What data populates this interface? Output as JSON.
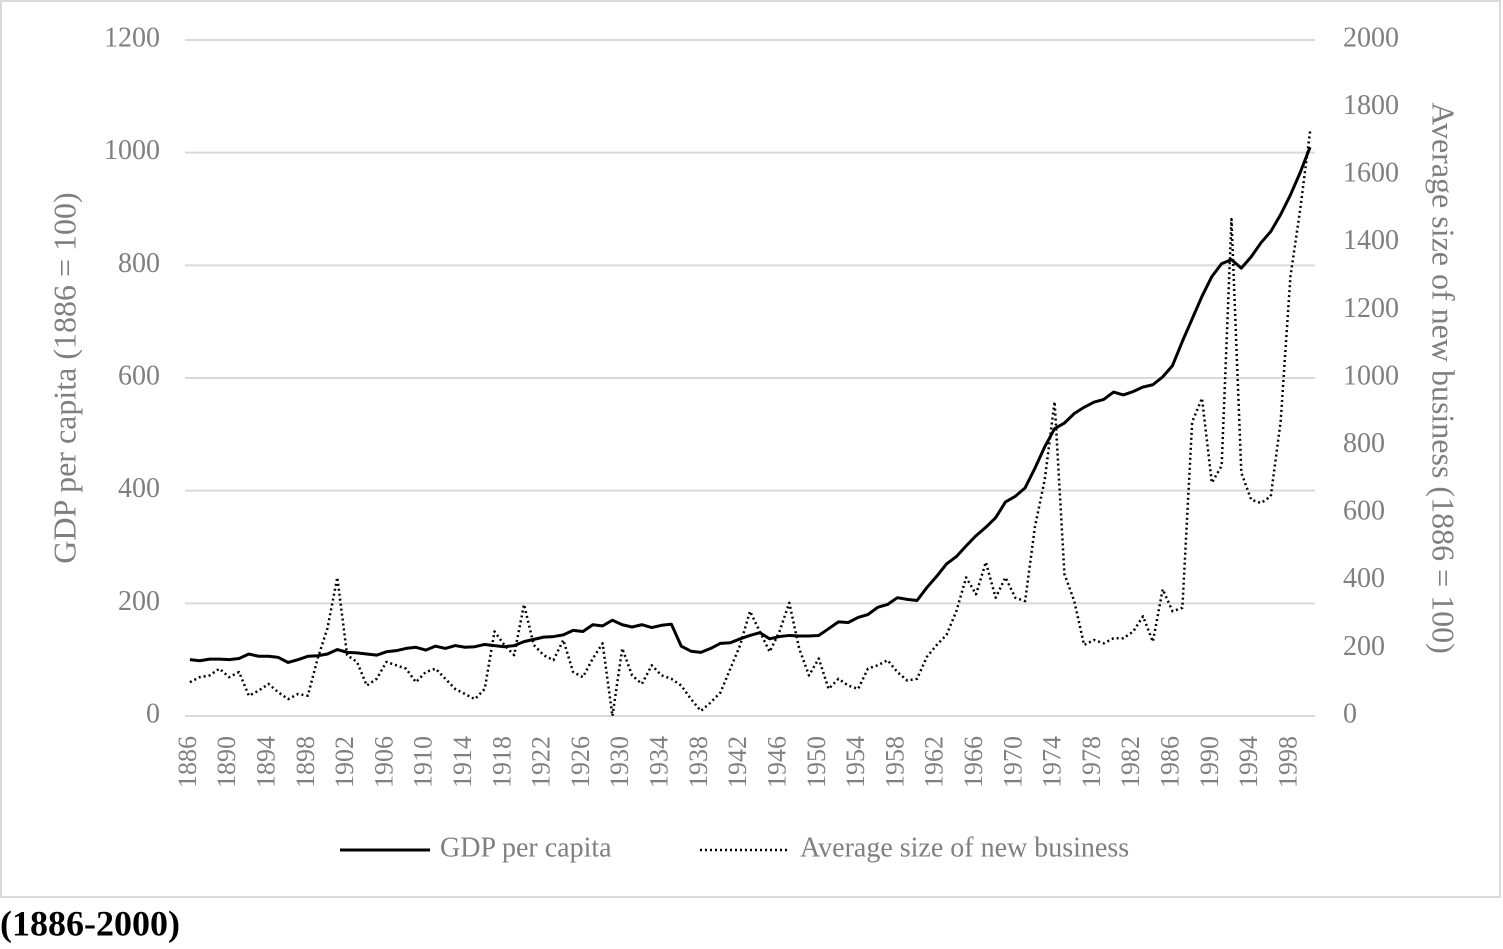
{
  "chart_data": {
    "type": "line",
    "y_label": "GDP per capita (1886 = 100)",
    "y2_label": "Average size of new business (1886 = 100)",
    "categories": [
      "1886",
      null,
      null,
      null,
      "1890",
      null,
      null,
      null,
      "1894",
      null,
      null,
      null,
      "1898",
      null,
      null,
      null,
      "1902",
      null,
      null,
      null,
      "1906",
      null,
      null,
      null,
      "1910",
      null,
      null,
      null,
      "1914",
      null,
      null,
      null,
      "1918",
      null,
      null,
      null,
      "1922",
      null,
      null,
      null,
      "1926",
      null,
      null,
      null,
      "1930",
      null,
      null,
      null,
      "1934",
      null,
      null,
      null,
      "1938",
      null,
      null,
      null,
      "1942",
      null,
      null,
      null,
      "1946",
      null,
      null,
      null,
      "1950",
      null,
      null,
      null,
      "1954",
      null,
      null,
      null,
      "1958",
      null,
      null,
      null,
      "1962",
      null,
      null,
      null,
      "1966",
      null,
      null,
      null,
      "1970",
      null,
      null,
      null,
      "1974",
      null,
      null,
      null,
      "1978",
      null,
      null,
      null,
      "1982",
      null,
      null,
      null,
      "1986",
      null,
      null,
      null,
      "1990",
      null,
      null,
      null,
      "1994",
      null,
      null,
      null,
      "1998",
      null,
      null
    ],
    "ylim": [
      0,
      1200
    ],
    "yticks": [
      0,
      200,
      400,
      600,
      800,
      1000,
      1200
    ],
    "y2lim": [
      0,
      2000
    ],
    "y2ticks": [
      0,
      200,
      400,
      600,
      800,
      1000,
      1200,
      1400,
      1600,
      1800,
      2000
    ],
    "grid": true,
    "legend": "bottom",
    "series": [
      {
        "name": "GDP per capita",
        "color": "#000000",
        "line_style": "solid",
        "values": [
          100,
          98,
          101,
          101,
          100,
          102,
          110,
          106,
          106,
          104,
          95,
          100,
          106,
          107,
          110,
          118,
          113,
          112,
          110,
          108,
          114,
          116,
          120,
          122,
          117,
          124,
          120,
          125,
          122,
          123,
          127,
          125,
          123,
          125,
          132,
          136,
          140,
          141,
          144,
          152,
          150,
          162,
          160,
          170,
          162,
          158,
          162,
          157,
          161,
          163,
          124,
          115,
          113,
          120,
          129,
          130,
          137,
          143,
          148,
          137,
          141,
          143,
          142,
          142,
          143,
          155,
          167,
          166,
          175,
          180,
          193,
          198,
          210,
          207,
          205,
          228,
          248,
          270,
          283,
          302,
          320,
          335,
          352,
          380,
          390,
          405,
          440,
          478,
          510,
          520,
          537,
          548,
          557,
          562,
          575,
          570,
          576,
          584,
          588,
          602,
          622,
          665,
          705,
          745,
          780,
          803,
          810,
          795,
          815,
          840,
          860,
          890,
          925,
          965,
          1010
        ]
      },
      {
        "name": "Average size of new business",
        "color": "#000000",
        "line_style": "dotted",
        "axis": "y2",
        "values": [
          100,
          115,
          120,
          140,
          115,
          130,
          60,
          75,
          95,
          70,
          50,
          65,
          60,
          170,
          260,
          410,
          180,
          160,
          90,
          110,
          160,
          150,
          140,
          100,
          130,
          140,
          110,
          80,
          65,
          50,
          80,
          250,
          210,
          180,
          330,
          210,
          180,
          165,
          225,
          130,
          115,
          170,
          215,
          0,
          200,
          120,
          95,
          150,
          120,
          110,
          90,
          50,
          15,
          40,
          70,
          140,
          210,
          310,
          250,
          190,
          250,
          335,
          200,
          120,
          170,
          80,
          110,
          90,
          80,
          140,
          150,
          165,
          130,
          105,
          110,
          175,
          210,
          240,
          310,
          410,
          360,
          455,
          350,
          410,
          350,
          340,
          560,
          700,
          930,
          420,
          340,
          210,
          225,
          215,
          230,
          230,
          250,
          295,
          220,
          375,
          310,
          320,
          870,
          940,
          690,
          740,
          1470,
          720,
          640,
          630,
          650,
          870,
          1300,
          1500,
          1730
        ]
      }
    ]
  },
  "caption": "(1886-2000)"
}
